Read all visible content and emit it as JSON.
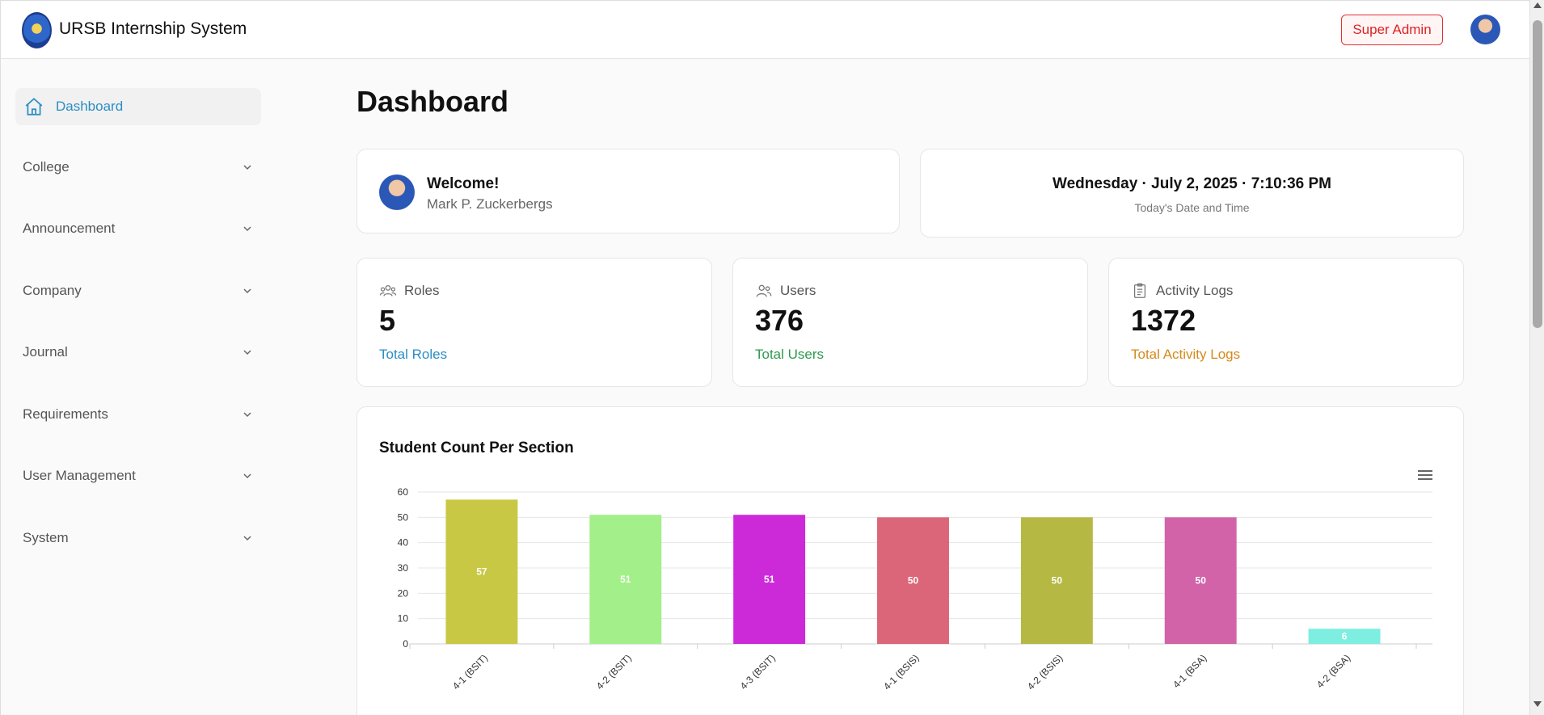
{
  "header": {
    "app_title": "URSB Internship System",
    "role_label": "Super Admin",
    "logo_icon": "school-seal-logo",
    "avatar_icon": "user-avatar"
  },
  "sidebar": {
    "active": {
      "label": "Dashboard",
      "icon": "home-icon"
    },
    "items": [
      {
        "label": "College"
      },
      {
        "label": "Announcement"
      },
      {
        "label": "Company"
      },
      {
        "label": "Journal"
      },
      {
        "label": "Requirements"
      },
      {
        "label": "User Management"
      },
      {
        "label": "System"
      }
    ]
  },
  "main": {
    "page_title": "Dashboard",
    "welcome": {
      "title": "Welcome!",
      "name": "Mark P. Zuckerbergs"
    },
    "datetime": {
      "value": "Wednesday · July 2, 2025 · 7:10:36 PM",
      "caption": "Today's Date and Time"
    },
    "stats": [
      {
        "label": "Roles",
        "value": "5",
        "caption": "Total Roles",
        "color": "#2a8ec3",
        "icon": "roles-icon"
      },
      {
        "label": "Users",
        "value": "376",
        "caption": "Total Users",
        "color": "#2e9a4e",
        "icon": "users-icon"
      },
      {
        "label": "Activity Logs",
        "value": "1372",
        "caption": "Total Activity Logs",
        "color": "#d48a1b",
        "icon": "clipboard-icon"
      }
    ]
  },
  "chart_data": {
    "type": "bar",
    "title": "Student Count Per Section",
    "categories": [
      "4-1 (BSIT)",
      "4-2 (BSIT)",
      "4-3 (BSIT)",
      "4-1 (BSIS)",
      "4-2 (BSIS)",
      "4-1 (BSA)",
      "4-2 (BSA)"
    ],
    "values": [
      57,
      51,
      51,
      50,
      50,
      50,
      6
    ],
    "colors": [
      "#c9c845",
      "#a3ef8a",
      "#cc2ad9",
      "#dc6679",
      "#b6b844",
      "#d263a9",
      "#7eeee0"
    ],
    "yticks": [
      0,
      10,
      20,
      30,
      40,
      50,
      60
    ],
    "ylim": [
      0,
      60
    ],
    "grid": true,
    "data_labels": true
  },
  "colors": {
    "accent": "#2a8ec3",
    "danger": "#d22222"
  }
}
